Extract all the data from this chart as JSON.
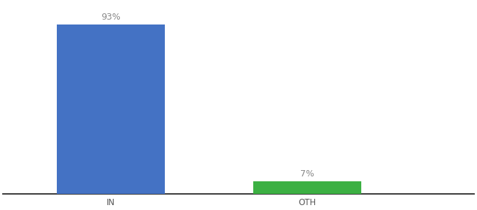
{
  "categories": [
    "IN",
    "OTH"
  ],
  "values": [
    93,
    7
  ],
  "bar_colors": [
    "#4472c4",
    "#3cb043"
  ],
  "labels": [
    "93%",
    "7%"
  ],
  "background_color": "#ffffff",
  "ylim": [
    0,
    105
  ],
  "bar_width": 0.55,
  "label_fontsize": 9,
  "tick_fontsize": 8.5,
  "label_color": "#888888"
}
